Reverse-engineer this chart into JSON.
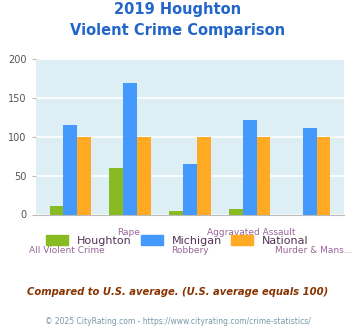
{
  "title_line1": "2019 Houghton",
  "title_line2": "Violent Crime Comparison",
  "categories": [
    "All Violent Crime",
    "Rape",
    "Robbery",
    "Aggravated Assault",
    "Murder & Mans..."
  ],
  "houghton": [
    11,
    60,
    5,
    7,
    0
  ],
  "michigan": [
    115,
    170,
    65,
    122,
    112
  ],
  "national": [
    100,
    100,
    100,
    100,
    100
  ],
  "color_houghton": "#88bb22",
  "color_michigan": "#4499ff",
  "color_national": "#ffaa22",
  "bg_color": "#ddeef5",
  "ylim": [
    0,
    200
  ],
  "yticks": [
    0,
    50,
    100,
    150,
    200
  ],
  "footnote1": "Compared to U.S. average. (U.S. average equals 100)",
  "footnote2": "© 2025 CityRating.com - https://www.cityrating.com/crime-statistics/",
  "title_color": "#2266cc",
  "footnote1_color": "#883300",
  "footnote2_color": "#7799aa",
  "xlabel_upper_color": "#996699",
  "xlabel_lower_color": "#996699",
  "legend_text_color": "#553355",
  "legend_labels": [
    "Houghton",
    "Michigan",
    "National"
  ],
  "bar_width": 0.23
}
